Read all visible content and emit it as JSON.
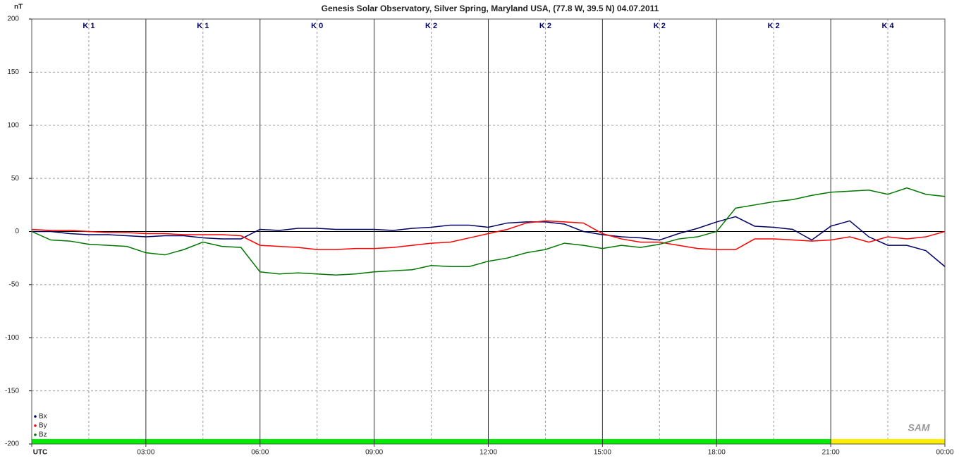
{
  "chart_data": {
    "type": "line",
    "title": "Genesis Solar Observatory, Silver Spring, Maryland USA, (77.8 W, 39.5 N)  04.07.2011",
    "y_label": "nT",
    "logo_text": "SAM",
    "x": [
      0,
      0.5,
      1,
      1.5,
      2,
      2.5,
      3,
      3.5,
      4,
      4.5,
      5,
      5.5,
      6,
      6.5,
      7,
      7.5,
      8,
      8.5,
      9,
      9.5,
      10,
      10.5,
      11,
      11.5,
      12,
      12.5,
      13,
      13.5,
      14,
      14.5,
      15,
      15.5,
      16,
      16.5,
      17,
      17.5,
      18,
      18.5,
      19,
      19.5,
      20,
      20.5,
      21,
      21.5,
      22,
      22.5,
      23,
      23.5,
      24
    ],
    "series": [
      {
        "name": "Bx",
        "color": "#000066",
        "values": [
          0,
          0,
          -2,
          -3,
          -3,
          -4,
          -5,
          -4,
          -4,
          -6,
          -7,
          -7,
          2,
          1,
          3,
          3,
          2,
          2,
          2,
          1,
          3,
          4,
          6,
          6,
          4,
          8,
          9,
          9,
          7,
          0,
          -3,
          -5,
          -6,
          -8,
          -2,
          3,
          9,
          14,
          5,
          4,
          2,
          -8,
          5,
          10,
          -5,
          -13,
          -13,
          -18,
          -33
        ]
      },
      {
        "name": "By",
        "color": "#ff0000",
        "values": [
          2,
          1,
          1,
          0,
          -1,
          -1,
          -2,
          -2,
          -3,
          -3,
          -3,
          -4,
          -13,
          -14,
          -15,
          -17,
          -17,
          -16,
          -16,
          -15,
          -13,
          -11,
          -10,
          -6,
          -2,
          2,
          8,
          10,
          9,
          8,
          -2,
          -7,
          -10,
          -10,
          -13,
          -16,
          -17,
          -17,
          -7,
          -7,
          -8,
          -9,
          -8,
          -5,
          -10,
          -5,
          -7,
          -5,
          0
        ]
      },
      {
        "name": "Bz",
        "color": "#007700",
        "values": [
          0,
          -8,
          -9,
          -12,
          -13,
          -14,
          -20,
          -22,
          -17,
          -10,
          -14,
          -15,
          -38,
          -40,
          -39,
          -40,
          -41,
          -40,
          -38,
          -37,
          -36,
          -32,
          -33,
          -33,
          -28,
          -25,
          -20,
          -17,
          -11,
          -13,
          -16,
          -13,
          -15,
          -12,
          -7,
          -5,
          0,
          22,
          25,
          28,
          30,
          34,
          37,
          38,
          39,
          35,
          41,
          35,
          33
        ]
      }
    ],
    "xlim": [
      0,
      24
    ],
    "xticks": [
      {
        "value": 0,
        "label": "UTC"
      },
      {
        "value": 3,
        "label": "03:00"
      },
      {
        "value": 6,
        "label": "06:00"
      },
      {
        "value": 9,
        "label": "09:00"
      },
      {
        "value": 12,
        "label": "12:00"
      },
      {
        "value": 15,
        "label": "15:00"
      },
      {
        "value": 18,
        "label": "18:00"
      },
      {
        "value": 21,
        "label": "21:00"
      },
      {
        "value": 24,
        "label": "00:00"
      }
    ],
    "xminorticks": [
      1.5,
      4.5,
      7.5,
      10.5,
      13.5,
      16.5,
      19.5,
      22.5
    ],
    "ylim": [
      -200,
      200
    ],
    "yticks": [
      200,
      150,
      100,
      50,
      0,
      -50,
      -100,
      -150,
      -200
    ],
    "k_labels": [
      "K 1",
      "K 1",
      "K 0",
      "K 2",
      "K 2",
      "K 2",
      "K 2",
      "K 4"
    ],
    "k_bar_colors": [
      "#00ee00",
      "#00ee00",
      "#00ee00",
      "#00ee00",
      "#00ee00",
      "#00ee00",
      "#00ee00",
      "#ffee00"
    ],
    "grid": true
  }
}
